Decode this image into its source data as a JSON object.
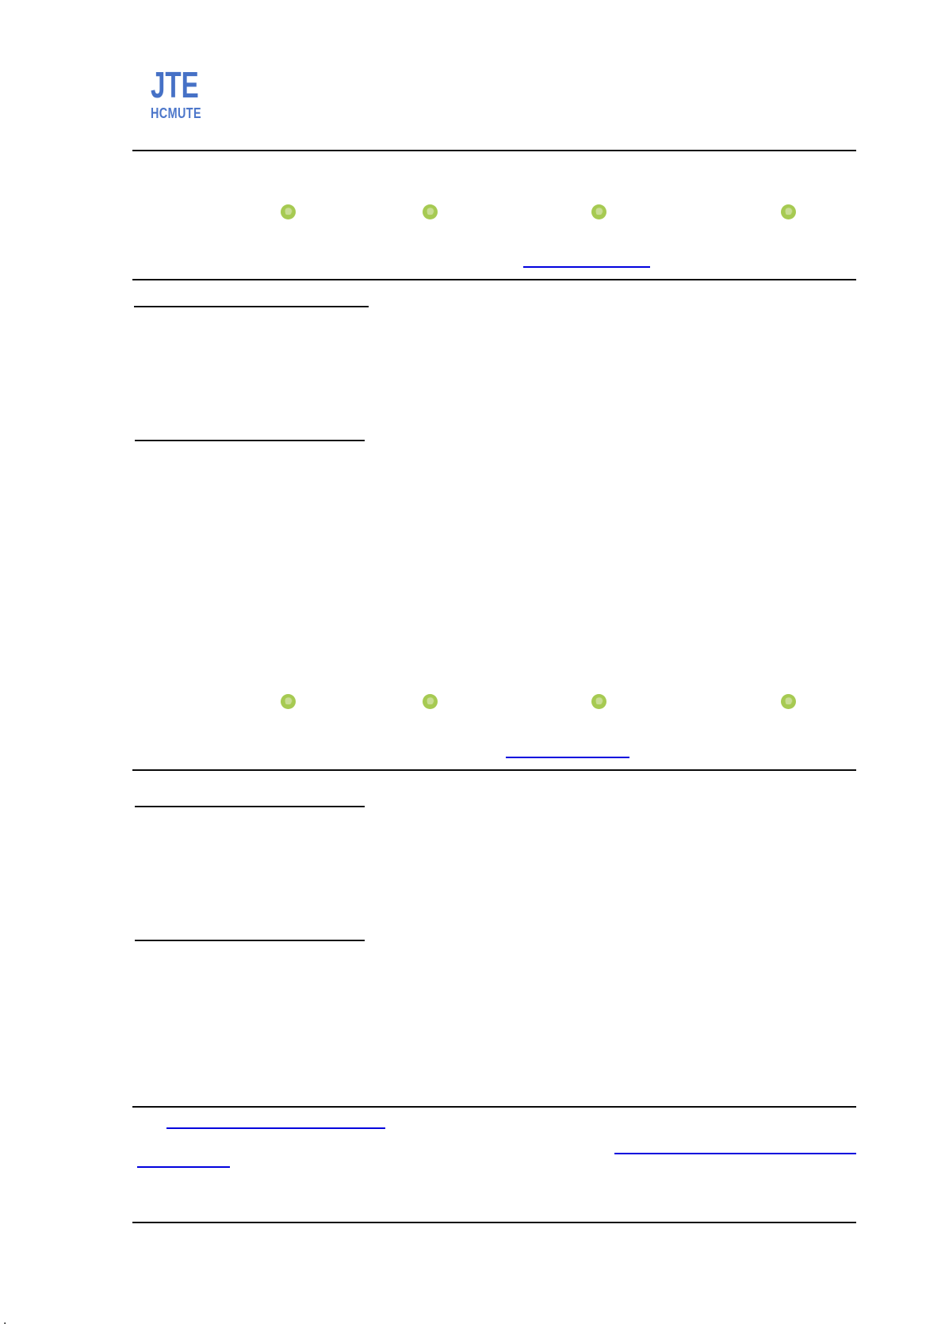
{
  "logo": {
    "title": "JTE",
    "subtitle": "HCMUTE"
  },
  "colors": {
    "logo_blue": "#4671c6",
    "link_blue": "#0000dd",
    "badge_green": "#a6ca52",
    "badge_green_light": "#d6e6aa",
    "rule_black": "#0a0a0a"
  },
  "sections": [
    {
      "name": "article-block-1",
      "badge_icons": [
        "badge-icon",
        "badge-icon",
        "badge-icon",
        "badge-icon"
      ],
      "link_label": "",
      "heading_labels": [
        "",
        ""
      ]
    },
    {
      "name": "article-block-2",
      "badge_icons": [
        "badge-icon",
        "badge-icon",
        "badge-icon",
        "badge-icon"
      ],
      "link_label": "",
      "heading_labels": [
        "",
        ""
      ]
    }
  ],
  "footer": {
    "link_labels": [
      "",
      "",
      ""
    ],
    "trailing_mark": "."
  }
}
